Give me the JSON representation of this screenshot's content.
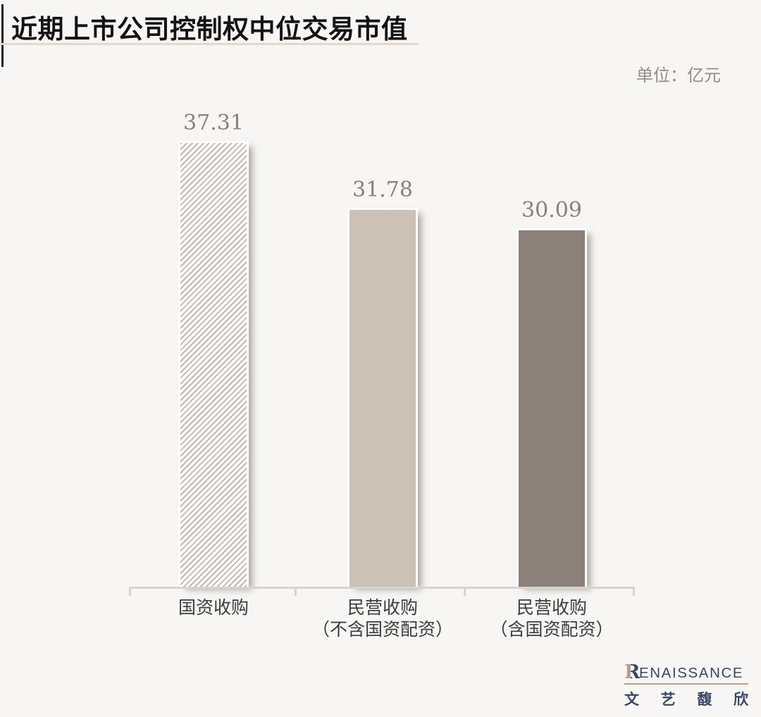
{
  "header": {
    "title": "近期上市公司控制权中位交易市值",
    "unit_label": "单位：亿元"
  },
  "chart_data": {
    "type": "bar",
    "title": "近期上市公司控制权中位交易市值",
    "unit": "亿元",
    "categories": [
      "国资收购",
      "民营收购（不含国资配资）",
      "民营收购（含国资配资）"
    ],
    "values": [
      37.31,
      31.78,
      30.09
    ],
    "ylim": [
      0,
      40
    ],
    "grid": false,
    "legend": "none",
    "value_labels_shown": true,
    "bar_styles": [
      "hatched-diagonal",
      "solid-light",
      "solid-dark"
    ]
  },
  "bars": [
    {
      "value_label": "37.31",
      "label_line1": "国资收购",
      "label_line2": "",
      "style": "hatched"
    },
    {
      "value_label": "31.78",
      "label_line1": "民营收购",
      "label_line2": "（不含国资配资）",
      "style": "solid-light"
    },
    {
      "value_label": "30.09",
      "label_line1": "民营收购",
      "label_line2": "（含国资配资）",
      "style": "solid-dark"
    }
  ],
  "colors": {
    "background": "#f7f6f4",
    "title_text": "#131313",
    "title_underline": "#e1d9cd",
    "unit_text": "#908c88",
    "hatch_stripe": "#c3b6ab",
    "bar_light": "#cbc1b4",
    "bar_dark": "#8b807a",
    "value_label": "#8b7f77",
    "axis": "#d8d3cf",
    "category_label": "#3c3c3c",
    "logo_navy": "#3b4760",
    "logo_beige": "#b3a28a"
  },
  "logo": {
    "monogram_letter": "R",
    "wordmark_rest": "ENAISSANCE",
    "cjk_chars": [
      "文",
      "艺",
      "馥",
      "欣"
    ]
  }
}
